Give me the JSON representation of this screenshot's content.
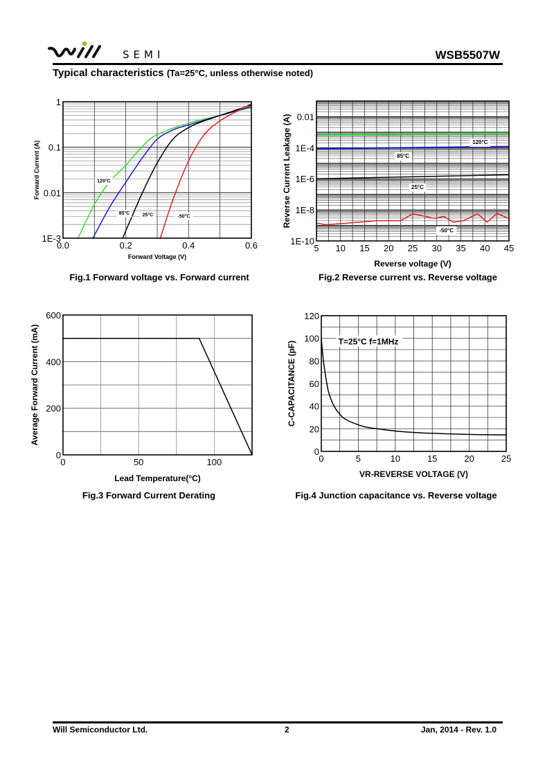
{
  "header": {
    "logo_text": "will",
    "brand": "SEMI",
    "part_number": "WSB5507W",
    "title": "Typical characteristics",
    "title_note": "(Ta=25°C, unless otherwise noted)"
  },
  "footer": {
    "company": "Will Semiconductor Ltd.",
    "page": "2",
    "revision": "Jan, 2014 - Rev. 1.0"
  },
  "colors": {
    "green": "#33dd33",
    "blue": "#1a1acc",
    "black": "#000000",
    "red": "#e02020"
  },
  "chart_data": [
    {
      "id": "fig1",
      "type": "line",
      "title": "Fig.1 Forward voltage vs. Forward current",
      "xlabel": "Forward Voltage (V)",
      "ylabel": "Forward Current (A)",
      "xscale": "linear",
      "yscale": "log",
      "xlim": [
        0,
        0.6
      ],
      "ylim": [
        0.001,
        1
      ],
      "xticks": [
        "0.0",
        "0.2",
        "0.4",
        "0.6"
      ],
      "yticks": [
        "1E-3",
        "0.01",
        "0.1",
        "1"
      ],
      "grid": true,
      "series": [
        {
          "name": "120°C",
          "color": "#33dd33",
          "x": [
            0.048,
            0.1,
            0.15,
            0.2,
            0.25,
            0.3,
            0.4,
            0.5,
            0.6
          ],
          "y": [
            0.001,
            0.0055,
            0.018,
            0.04,
            0.1,
            0.19,
            0.34,
            0.5,
            0.75
          ]
        },
        {
          "name": "85°C",
          "color": "#1a1acc",
          "x": [
            0.095,
            0.15,
            0.2,
            0.25,
            0.3,
            0.35,
            0.4,
            0.5,
            0.6
          ],
          "y": [
            0.001,
            0.005,
            0.017,
            0.055,
            0.15,
            0.24,
            0.31,
            0.5,
            0.78
          ]
        },
        {
          "name": "25°C",
          "color": "#000000",
          "x": [
            0.19,
            0.25,
            0.3,
            0.35,
            0.4,
            0.45,
            0.5,
            0.6
          ],
          "y": [
            0.001,
            0.009,
            0.045,
            0.15,
            0.27,
            0.38,
            0.5,
            0.85
          ]
        },
        {
          "name": "-50°C",
          "color": "#e02020",
          "x": [
            0.31,
            0.35,
            0.4,
            0.45,
            0.5,
            0.55,
            0.6
          ],
          "y": [
            0.001,
            0.007,
            0.05,
            0.19,
            0.38,
            0.6,
            0.9
          ]
        }
      ],
      "labels": [
        {
          "text": "120°C",
          "x": 0.13,
          "y": 0.018
        },
        {
          "text": "85°C",
          "x": 0.195,
          "y": 0.0035
        },
        {
          "text": "25°C",
          "x": 0.27,
          "y": 0.0032
        },
        {
          "text": "-50°C",
          "x": 0.385,
          "y": 0.003
        }
      ]
    },
    {
      "id": "fig2",
      "type": "line",
      "title": "Fig.2 Reverse current vs. Reverse voltage",
      "xlabel": "Reverse voltage (V)",
      "ylabel": "Reverse Current Leakage (A)",
      "xscale": "linear",
      "yscale": "log",
      "xlim": [
        5,
        45
      ],
      "ylim": [
        1e-10,
        0.1
      ],
      "xticks": [
        "5",
        "10",
        "15",
        "20",
        "25",
        "30",
        "35",
        "40",
        "45"
      ],
      "yticks": [
        "1E-10",
        "1E-8",
        "1E-6",
        "1E-4",
        "0.01"
      ],
      "grid": true,
      "series": [
        {
          "name": "120°C",
          "color": "#33dd33",
          "x": [
            5,
            45
          ],
          "y": [
            0.00062,
            0.00085
          ]
        },
        {
          "name": "85°C",
          "color": "#1a1acc",
          "x": [
            5,
            45
          ],
          "y": [
            8.5e-05,
            0.00012
          ]
        },
        {
          "name": "25°C",
          "color": "#000000",
          "x": [
            5,
            45
          ],
          "y": [
            1e-06,
            1.8e-06
          ]
        },
        {
          "name": "-50°C",
          "color": "#e02020",
          "x": [
            5,
            7,
            10,
            15,
            17.5,
            20,
            22.5,
            25,
            27.5,
            29.5,
            31.5,
            33.5,
            35.5,
            38.5,
            40.5,
            42.5,
            45
          ],
          "y": [
            1.4e-09,
            1.1e-09,
            1.3e-09,
            1.7e-09,
            2e-09,
            2e-09,
            2e-09,
            5.5e-09,
            3.8e-09,
            2.8e-09,
            3.7e-09,
            1.6e-09,
            2e-09,
            5.5e-09,
            1.6e-09,
            6e-09,
            2.7e-09
          ]
        }
      ],
      "labels": [
        {
          "text": "120°C",
          "x": 39,
          "y": 0.00021
        },
        {
          "text": "85°C",
          "x": 23,
          "y": 2.7e-05
        },
        {
          "text": "25°C",
          "x": 26,
          "y": 2.7e-07
        },
        {
          "text": "-50°C",
          "x": 32,
          "y": 4.5e-10
        }
      ]
    },
    {
      "id": "fig3",
      "type": "line",
      "title": "Fig.3 Forward Current Derating",
      "xlabel": "Lead Temperature(°C)",
      "ylabel": "Average Forward Current (mA)",
      "xlim": [
        0,
        125
      ],
      "ylim": [
        0,
        600
      ],
      "xticks": [
        "0",
        "50",
        "100"
      ],
      "yticks": [
        "0",
        "200",
        "400",
        "600"
      ],
      "grid": true,
      "series": [
        {
          "name": "derating",
          "color": "#000000",
          "x": [
            0,
            90,
            125
          ],
          "y": [
            500,
            500,
            0
          ]
        }
      ]
    },
    {
      "id": "fig4",
      "type": "line",
      "title": "Fig.4 Junction capacitance vs. Reverse voltage",
      "xlabel": "VR-REVERSE VOLTAGE (V)",
      "ylabel": "C-CAPACITANCE (pF)",
      "xlim": [
        0,
        25
      ],
      "ylim": [
        0,
        120
      ],
      "xticks": [
        "0",
        "5",
        "10",
        "15",
        "20",
        "25"
      ],
      "yticks": [
        "0",
        "20",
        "40",
        "60",
        "80",
        "100",
        "120"
      ],
      "grid": true,
      "annotation": "T=25°C f=1MHz",
      "series": [
        {
          "name": "capacitance",
          "color": "#000000",
          "x": [
            0,
            0.25,
            0.5,
            0.75,
            1,
            1.5,
            2,
            2.5,
            3,
            4,
            5,
            6,
            7.5,
            10,
            12.5,
            15,
            20,
            25
          ],
          "y": [
            100,
            82,
            70,
            60,
            52,
            43,
            37,
            33,
            29.5,
            26,
            23.5,
            21.5,
            20,
            18,
            16.8,
            16,
            15,
            14.5
          ]
        }
      ]
    }
  ]
}
